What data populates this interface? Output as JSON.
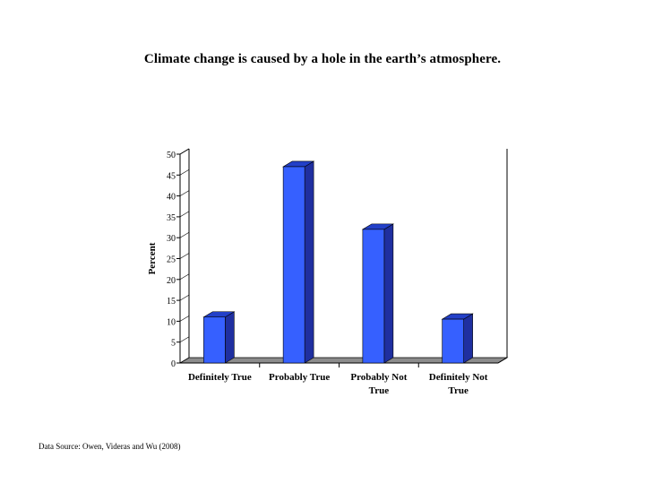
{
  "chart_data": {
    "type": "bar",
    "title": "Climate change is caused by a hole in the earth’s atmosphere.",
    "ylabel": "Percent",
    "xlabel": "",
    "categories": [
      [
        "Definitely True"
      ],
      [
        "Probably True"
      ],
      [
        "Probably Not",
        "True"
      ],
      [
        "Definitely Not",
        "True"
      ]
    ],
    "values": [
      11,
      47,
      32,
      10.5
    ],
    "ylim": [
      0,
      50
    ],
    "yticks": [
      "0",
      "5",
      "10",
      "15",
      "20",
      "25",
      "30",
      "35",
      "40",
      "45",
      "50"
    ],
    "grid": false,
    "legend": "none",
    "colors": {
      "bar_front": "#3660ff",
      "bar_side": "#1f2fa0",
      "bar_top": "#2340c8",
      "floor": "#8c8c8c"
    }
  },
  "footer": {
    "source": "Data Source: Owen, Videras and Wu (2008)"
  }
}
